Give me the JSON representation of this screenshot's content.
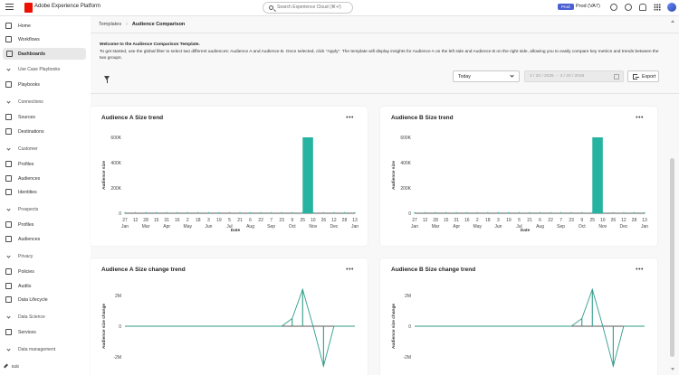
{
  "app": {
    "title": "Adobe Experience Platform"
  },
  "search": {
    "placeholder": "Search Experience Cloud (⌘+/)"
  },
  "header": {
    "sandbox_badge": "Prod",
    "sandbox_name": "Prod (VA7)"
  },
  "icons": {
    "menu": "hamburger-icon",
    "logo": "adobe-logo",
    "search": "search-icon",
    "notifications": "bell-icon",
    "help": "help-icon",
    "feedback": "chat-icon",
    "apps": "apps-grid-icon",
    "profile": "avatar"
  },
  "sidebar": {
    "items": [
      {
        "label": "Home",
        "icon": "home-icon"
      },
      {
        "label": "Workflows",
        "icon": "workflow-icon"
      },
      {
        "label": "Dashboards",
        "icon": "dashboard-icon",
        "active": true
      }
    ],
    "sections": [
      {
        "label": "Use Case Playbooks",
        "items": [
          {
            "label": "Playbooks",
            "icon": "playbook-icon"
          }
        ]
      },
      {
        "label": "Connections",
        "items": [
          {
            "label": "Sources",
            "icon": "sources-icon"
          },
          {
            "label": "Destinations",
            "icon": "destinations-icon"
          }
        ]
      },
      {
        "label": "Customer",
        "items": [
          {
            "label": "Profiles",
            "icon": "profile-icon"
          },
          {
            "label": "Audiences",
            "icon": "audience-icon"
          },
          {
            "label": "Identities",
            "icon": "identity-icon"
          }
        ]
      },
      {
        "label": "Prospects",
        "items": [
          {
            "label": "Profiles",
            "icon": "profile-icon"
          },
          {
            "label": "Audiences",
            "icon": "audience-icon"
          }
        ]
      },
      {
        "label": "Privacy",
        "items": [
          {
            "label": "Policies",
            "icon": "policy-icon"
          },
          {
            "label": "Audits",
            "icon": "audit-icon"
          },
          {
            "label": "Data Lifecycle",
            "icon": "lifecycle-icon"
          }
        ]
      },
      {
        "label": "Data Science",
        "items": [
          {
            "label": "Services",
            "icon": "services-icon"
          }
        ]
      },
      {
        "label": "Data management",
        "items": []
      }
    ],
    "edit_label": "Edit"
  },
  "breadcrumb": {
    "parent": "Templates",
    "separator": "›",
    "current": "Audience Comparison"
  },
  "intro": {
    "title": "Welcome to the Audience Comparison Template.",
    "body": "To get started, use the global filter to select two different audiences: Audience A and Audience B. Once selected, click \"Apply\". The template will display insights for Audience A on the left side and Audience B on the right side, allowing you to easily compare key metrics and trends between the two groups."
  },
  "filters": {
    "date_preset": "Today",
    "date_start": "3 / 20 / 2026",
    "date_end": "3 / 20 / 2026",
    "date_separator": "-",
    "export_label": "Export"
  },
  "colors": {
    "accent": "#26b3a0",
    "line": "#2f9d8a",
    "sandbox": "#4b5fd4",
    "logo": "#eb1000"
  },
  "cards": [
    {
      "title": "Audience A Size trend",
      "menu": "•••"
    },
    {
      "title": "Audience B Size trend",
      "menu": "•••"
    },
    {
      "title": "Audience A Size change trend",
      "menu": "•••"
    },
    {
      "title": "Audience B Size change trend",
      "menu": "•••"
    }
  ],
  "chart_data": [
    {
      "type": "area",
      "title": "Audience A Size trend",
      "xlabel": "Date",
      "ylabel": "Audience size",
      "y_ticks": [
        "600K",
        "400K",
        "200K",
        "0"
      ],
      "ylim": [
        0,
        600000
      ],
      "x_tick_days": [
        "27",
        "12",
        "28",
        "15",
        "31",
        "16",
        "2",
        "18",
        "3",
        "19",
        "5",
        "21",
        "6",
        "22",
        "7",
        "23",
        "9",
        "25",
        "10",
        "26",
        "12",
        "28",
        "13"
      ],
      "x_tick_months": [
        "Jan",
        "Mar",
        "Apr",
        "May",
        "Jun",
        "Jul",
        "Aug",
        "Sep",
        "Oct",
        "Nov",
        "Dec",
        "Jan"
      ],
      "series": [
        {
          "values": [
            0,
            0,
            0,
            0,
            0,
            0,
            0,
            0,
            0,
            0,
            0,
            0,
            0,
            0,
            0,
            0,
            0,
            600000,
            600000,
            0,
            0,
            0,
            0
          ]
        }
      ]
    },
    {
      "type": "area",
      "title": "Audience B Size trend",
      "xlabel": "Date",
      "ylabel": "Audience size",
      "y_ticks": [
        "600K",
        "400K",
        "200K",
        "0"
      ],
      "ylim": [
        0,
        600000
      ],
      "x_tick_days": [
        "27",
        "12",
        "28",
        "15",
        "31",
        "16",
        "2",
        "18",
        "3",
        "19",
        "5",
        "21",
        "6",
        "22",
        "7",
        "23",
        "9",
        "25",
        "10",
        "26",
        "12",
        "28",
        "13"
      ],
      "x_tick_months": [
        "Jan",
        "Mar",
        "Apr",
        "May",
        "Jun",
        "Jul",
        "Aug",
        "Sep",
        "Oct",
        "Nov",
        "Dec",
        "Jan"
      ],
      "series": [
        {
          "values": [
            0,
            0,
            0,
            0,
            0,
            0,
            0,
            0,
            0,
            0,
            0,
            0,
            0,
            0,
            0,
            0,
            0,
            600000,
            600000,
            0,
            0,
            0,
            0
          ]
        }
      ]
    },
    {
      "type": "line",
      "title": "Audience A Size change trend",
      "xlabel": "",
      "ylabel": "Audience size change",
      "y_ticks": [
        "2M",
        "0",
        "-2M"
      ],
      "ylim": [
        -2000000,
        2000000
      ],
      "series": [
        {
          "values": [
            0,
            0,
            0,
            0,
            0,
            0,
            0,
            0,
            0,
            0,
            0,
            0,
            0,
            0,
            0,
            0,
            500000,
            2400000,
            0,
            -2600000,
            0,
            0,
            0
          ]
        }
      ]
    },
    {
      "type": "line",
      "title": "Audience B Size change trend",
      "xlabel": "",
      "ylabel": "Audience size change",
      "y_ticks": [
        "2M",
        "0",
        "-2M"
      ],
      "ylim": [
        -2000000,
        2000000
      ],
      "series": [
        {
          "values": [
            0,
            0,
            0,
            0,
            0,
            0,
            0,
            0,
            0,
            0,
            0,
            0,
            0,
            0,
            0,
            0,
            500000,
            2400000,
            0,
            -2600000,
            0,
            0,
            0
          ]
        }
      ]
    }
  ]
}
